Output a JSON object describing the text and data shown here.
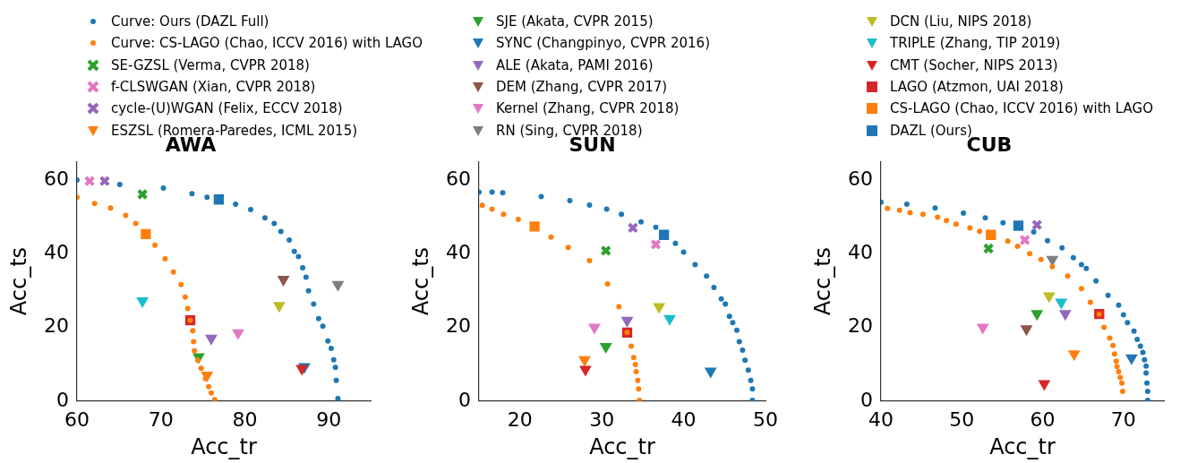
{
  "chart_data": [
    {
      "type": "scatter",
      "title": "AWA",
      "xlabel": "Acc_tr",
      "ylabel": "Acc_ts",
      "xlim": [
        60,
        95
      ],
      "xticks": [
        60,
        70,
        80,
        90
      ],
      "ylim": [
        0,
        65
      ],
      "yticks": [
        0,
        20,
        40,
        60
      ],
      "grid": false,
      "legend": "top",
      "series": [
        {
          "name": "Curve: Ours (DAZL Full)",
          "color": "#1f77b4",
          "marker": "circle",
          "x": [
            60.0,
            65.1,
            70.3,
            73.7,
            75.5,
            78.9,
            80.7,
            82.4,
            83.5,
            84.3,
            85.3,
            85.9,
            86.4,
            86.9,
            87.3,
            87.6,
            88.2,
            88.8,
            89.3,
            89.9,
            90.3,
            90.6,
            90.8,
            90.9,
            91.1
          ],
          "values": [
            60.0,
            58.8,
            57.8,
            56.3,
            55.3,
            53.4,
            52.0,
            49.7,
            48.2,
            46.0,
            43.7,
            40.6,
            39.2,
            36.2,
            33.6,
            29.9,
            26.3,
            22.4,
            20.3,
            16.3,
            14.3,
            11.2,
            9.1,
            5.6,
            0.7
          ]
        },
        {
          "name": "Curve: CS-LAGO (Chao, ICCV 2016) with LAGO",
          "color": "#ff7f0e",
          "marker": "circle",
          "x": [
            60.0,
            62.1,
            64.0,
            65.8,
            67.0,
            69.3,
            70.5,
            71.5,
            72.4,
            72.9,
            73.2,
            73.5,
            73.8,
            73.9,
            74.0,
            74.4,
            74.8,
            75.3,
            75.7,
            76.0,
            76.4
          ],
          "values": [
            55.3,
            53.6,
            52.4,
            50.4,
            48.2,
            42.3,
            38.6,
            35.0,
            31.6,
            28.2,
            25.1,
            21.9,
            19.1,
            16.1,
            13.6,
            11.1,
            8.9,
            6.1,
            3.9,
            2.2,
            0.4
          ]
        },
        {
          "name": "SE-GZSL (Verma, CVPR 2018)",
          "color": "#2ca02c",
          "marker": "cross",
          "x": [
            67.8
          ],
          "values": [
            56.1
          ]
        },
        {
          "name": "f-CLSWGAN (Xian, CVPR 2018)",
          "color": "#e377c2",
          "marker": "cross",
          "x": [
            61.5
          ],
          "values": [
            59.7
          ]
        },
        {
          "name": "cycle-(U)WGAN (Felix, ECCV 2018)",
          "color": "#9467bd",
          "marker": "cross",
          "x": [
            63.3
          ],
          "values": [
            59.7
          ]
        },
        {
          "name": "ESZSL (Romera-Paredes, ICML 2015)",
          "color": "#ff7f0e",
          "marker": "triangle",
          "x": [
            75.5
          ],
          "values": [
            7.0
          ]
        },
        {
          "name": "SJE (Akata, CVPR 2015)",
          "color": "#2ca02c",
          "marker": "triangle",
          "x": [
            74.5
          ],
          "values": [
            12.0
          ]
        },
        {
          "name": "SYNC (Changpinyo, CVPR 2016)",
          "color": "#1f77b4",
          "marker": "triangle",
          "x": [
            87.1
          ],
          "values": [
            9.3
          ]
        },
        {
          "name": "ALE (Akata, PAMI 2016)",
          "color": "#9467bd",
          "marker": "triangle",
          "x": [
            76.0
          ],
          "values": [
            17.0
          ]
        },
        {
          "name": "DEM (Zhang, CVPR 2017)",
          "color": "#8c564b",
          "marker": "triangle",
          "x": [
            84.6
          ],
          "values": [
            33.0
          ]
        },
        {
          "name": "Kernel (Zhang, CVPR 2018)",
          "color": "#e377c2",
          "marker": "triangle",
          "x": [
            79.2
          ],
          "values": [
            18.5
          ]
        },
        {
          "name": "RN (Sing, CVPR 2018)",
          "color": "#7f7f7f",
          "marker": "triangle",
          "x": [
            91.1
          ],
          "values": [
            31.6
          ]
        },
        {
          "name": "DCN (Liu, NIPS 2018)",
          "color": "#bcbd22",
          "marker": "triangle",
          "x": [
            84.1
          ],
          "values": [
            25.9
          ]
        },
        {
          "name": "TRIPLE (Zhang, TIP 2019)",
          "color": "#17becf",
          "marker": "triangle",
          "x": [
            67.8
          ],
          "values": [
            27.2
          ]
        },
        {
          "name": "CMT (Socher, NIPS 2013)",
          "color": "#d62728",
          "marker": "triangle",
          "x": [
            86.8
          ],
          "values": [
            8.8
          ]
        },
        {
          "name": "LAGO (Atzmon, UAI 2018)",
          "color": "#d62728",
          "marker": "square",
          "x": [
            73.5
          ],
          "values": [
            21.9
          ]
        },
        {
          "name": "CS-LAGO (Chao, ICCV 2016) with LAGO",
          "color": "#ff7f0e",
          "marker": "square",
          "x": [
            68.2
          ],
          "values": [
            45.3
          ]
        },
        {
          "name": "DAZL (Ours)",
          "color": "#1f77b4",
          "marker": "square",
          "x": [
            76.9
          ],
          "values": [
            54.7
          ]
        }
      ]
    },
    {
      "type": "scatter",
      "title": "SUN",
      "xlabel": "Acc_tr",
      "ylabel": "Acc_ts",
      "xlim": [
        15,
        50
      ],
      "xticks": [
        20,
        30,
        40,
        50
      ],
      "ylim": [
        0,
        65
      ],
      "yticks": [
        0,
        20,
        40,
        60
      ],
      "grid": false,
      "series": [
        {
          "color": "#1f77b4",
          "marker": "circle",
          "x": [
            15.0,
            16.6,
            17.9,
            22.6,
            26.1,
            28.5,
            30.6,
            32.4,
            34.8,
            36.6,
            39.0,
            40.0,
            41.4,
            42.8,
            43.7,
            44.6,
            45.1,
            45.6,
            46.0,
            46.5,
            46.8,
            47.2,
            47.5,
            47.9,
            48.2,
            48.4,
            48.4
          ],
          "values": [
            56.7,
            56.7,
            56.5,
            55.5,
            54.4,
            53.2,
            52.1,
            50.7,
            48.6,
            47.2,
            42.8,
            40.4,
            37.0,
            33.9,
            30.8,
            27.7,
            26.3,
            23.0,
            21.3,
            19.2,
            16.1,
            13.8,
            11.1,
            8.4,
            5.6,
            3.3,
            0.2
          ]
        },
        {
          "color": "#ff7f0e",
          "marker": "circle",
          "x": [
            15.4,
            16.6,
            18.0,
            19.8,
            23.8,
            25.9,
            28.5,
            30.7,
            32.1,
            33.1,
            33.6,
            33.9,
            34.1,
            34.2,
            34.4,
            34.5,
            34.6
          ],
          "values": [
            53.1,
            52.1,
            50.7,
            49.3,
            44.5,
            41.7,
            38.1,
            31.8,
            25.6,
            18.6,
            14.9,
            11.8,
            9.9,
            8.0,
            5.6,
            3.3,
            0.2
          ]
        },
        {
          "color": "#2ca02c",
          "marker": "cross",
          "x": [
            30.5
          ],
          "values": [
            40.8
          ]
        },
        {
          "color": "#e377c2",
          "marker": "cross",
          "x": [
            36.6
          ],
          "values": [
            42.5
          ]
        },
        {
          "color": "#9467bd",
          "marker": "cross",
          "x": [
            33.8
          ],
          "values": [
            47.0
          ]
        },
        {
          "color": "#ff7f0e",
          "marker": "triangle",
          "x": [
            27.9
          ],
          "values": [
            11.2
          ]
        },
        {
          "color": "#2ca02c",
          "marker": "triangle",
          "x": [
            30.5
          ],
          "values": [
            14.8
          ]
        },
        {
          "color": "#1f77b4",
          "marker": "triangle",
          "x": [
            43.3
          ],
          "values": [
            8.1
          ]
        },
        {
          "color": "#9467bd",
          "marker": "triangle",
          "x": [
            33.1
          ],
          "values": [
            21.9
          ]
        },
        {
          "color": "#e377c2",
          "marker": "triangle",
          "x": [
            29.1
          ],
          "values": [
            20.0
          ]
        },
        {
          "color": "#bcbd22",
          "marker": "triangle",
          "x": [
            37.0
          ],
          "values": [
            25.6
          ]
        },
        {
          "color": "#17becf",
          "marker": "triangle",
          "x": [
            38.3
          ],
          "values": [
            22.4
          ]
        },
        {
          "color": "#d62728",
          "marker": "triangle",
          "x": [
            28.0
          ],
          "values": [
            8.6
          ]
        },
        {
          "color": "#d62728",
          "marker": "square",
          "x": [
            33.1
          ],
          "values": [
            18.6
          ]
        },
        {
          "color": "#ff7f0e",
          "marker": "square",
          "x": [
            21.8
          ],
          "values": [
            47.4
          ]
        },
        {
          "color": "#1f77b4",
          "marker": "square",
          "x": [
            37.6
          ],
          "values": [
            45.1
          ]
        }
      ]
    },
    {
      "type": "scatter",
      "title": "CUB",
      "xlabel": "Acc_tr",
      "ylabel": "Acc_ts",
      "xlim": [
        40,
        75
      ],
      "xticks": [
        40,
        50,
        60,
        70
      ],
      "ylim": [
        0,
        65
      ],
      "yticks": [
        0,
        20,
        40,
        60
      ],
      "grid": false,
      "series": [
        {
          "color": "#1f77b4",
          "marker": "circle",
          "x": [
            40.0,
            43.2,
            46.7,
            50.2,
            52.9,
            55.1,
            58.9,
            60.6,
            62.4,
            63.8,
            64.8,
            65.4,
            66.6,
            68.1,
            69.4,
            70.0,
            70.5,
            71.3,
            71.7,
            72.1,
            72.4,
            72.6,
            72.8,
            72.8,
            72.9,
            73.0,
            73.0
          ],
          "values": [
            54.0,
            53.4,
            52.4,
            51.0,
            49.7,
            48.4,
            45.9,
            43.5,
            41.6,
            38.9,
            37.0,
            36.0,
            32.6,
            28.7,
            26.0,
            23.4,
            21.3,
            19.0,
            16.7,
            14.9,
            13.2,
            11.2,
            9.5,
            7.6,
            4.9,
            2.6,
            0.2
          ]
        },
        {
          "color": "#ff7f0e",
          "marker": "circle",
          "x": [
            40.8,
            42.3,
            43.6,
            45.2,
            47.0,
            48.1,
            49.3,
            51.0,
            52.2,
            55.7,
            56.9,
            58.4,
            59.8,
            61.2,
            63.1,
            64.8,
            65.9,
            67.0,
            67.6,
            68.3,
            68.7,
            68.9,
            69.1,
            69.2,
            69.4,
            69.6,
            69.8,
            69.9
          ],
          "values": [
            52.3,
            51.8,
            51.1,
            50.7,
            49.9,
            49.0,
            48.0,
            47.0,
            46.1,
            43.4,
            42.0,
            40.0,
            38.4,
            36.5,
            33.9,
            30.5,
            26.8,
            23.6,
            20.0,
            17.1,
            15.1,
            12.8,
            10.8,
            9.4,
            8.0,
            6.4,
            4.9,
            2.6
          ]
        },
        {
          "color": "#2ca02c",
          "marker": "cross",
          "x": [
            53.3
          ],
          "values": [
            41.4
          ]
        },
        {
          "color": "#e377c2",
          "marker": "cross",
          "x": [
            57.8
          ],
          "values": [
            43.7
          ]
        },
        {
          "color": "#9467bd",
          "marker": "cross",
          "x": [
            59.3
          ],
          "values": [
            47.8
          ]
        },
        {
          "color": "#ff7f0e",
          "marker": "triangle",
          "x": [
            63.9
          ],
          "values": [
            12.8
          ]
        },
        {
          "color": "#2ca02c",
          "marker": "triangle",
          "x": [
            59.3
          ],
          "values": [
            23.7
          ]
        },
        {
          "color": "#1f77b4",
          "marker": "triangle",
          "x": [
            71.0
          ],
          "values": [
            11.7
          ]
        },
        {
          "color": "#9467bd",
          "marker": "triangle",
          "x": [
            62.8
          ],
          "values": [
            23.7
          ]
        },
        {
          "color": "#8c564b",
          "marker": "triangle",
          "x": [
            58.0
          ],
          "values": [
            19.6
          ]
        },
        {
          "color": "#e377c2",
          "marker": "triangle",
          "x": [
            52.6
          ],
          "values": [
            20.0
          ]
        },
        {
          "color": "#7f7f7f",
          "marker": "triangle",
          "x": [
            61.2
          ],
          "values": [
            38.4
          ]
        },
        {
          "color": "#bcbd22",
          "marker": "triangle",
          "x": [
            60.8
          ],
          "values": [
            28.5
          ]
        },
        {
          "color": "#17becf",
          "marker": "triangle",
          "x": [
            62.3
          ],
          "values": [
            26.8
          ]
        },
        {
          "color": "#d62728",
          "marker": "triangle",
          "x": [
            60.2
          ],
          "values": [
            4.7
          ]
        },
        {
          "color": "#d62728",
          "marker": "square",
          "x": [
            67.0
          ],
          "values": [
            23.6
          ]
        },
        {
          "color": "#ff7f0e",
          "marker": "square",
          "x": [
            53.6
          ],
          "values": [
            45.1
          ]
        },
        {
          "color": "#1f77b4",
          "marker": "square",
          "x": [
            57.0
          ],
          "values": [
            47.6
          ]
        }
      ]
    }
  ]
}
